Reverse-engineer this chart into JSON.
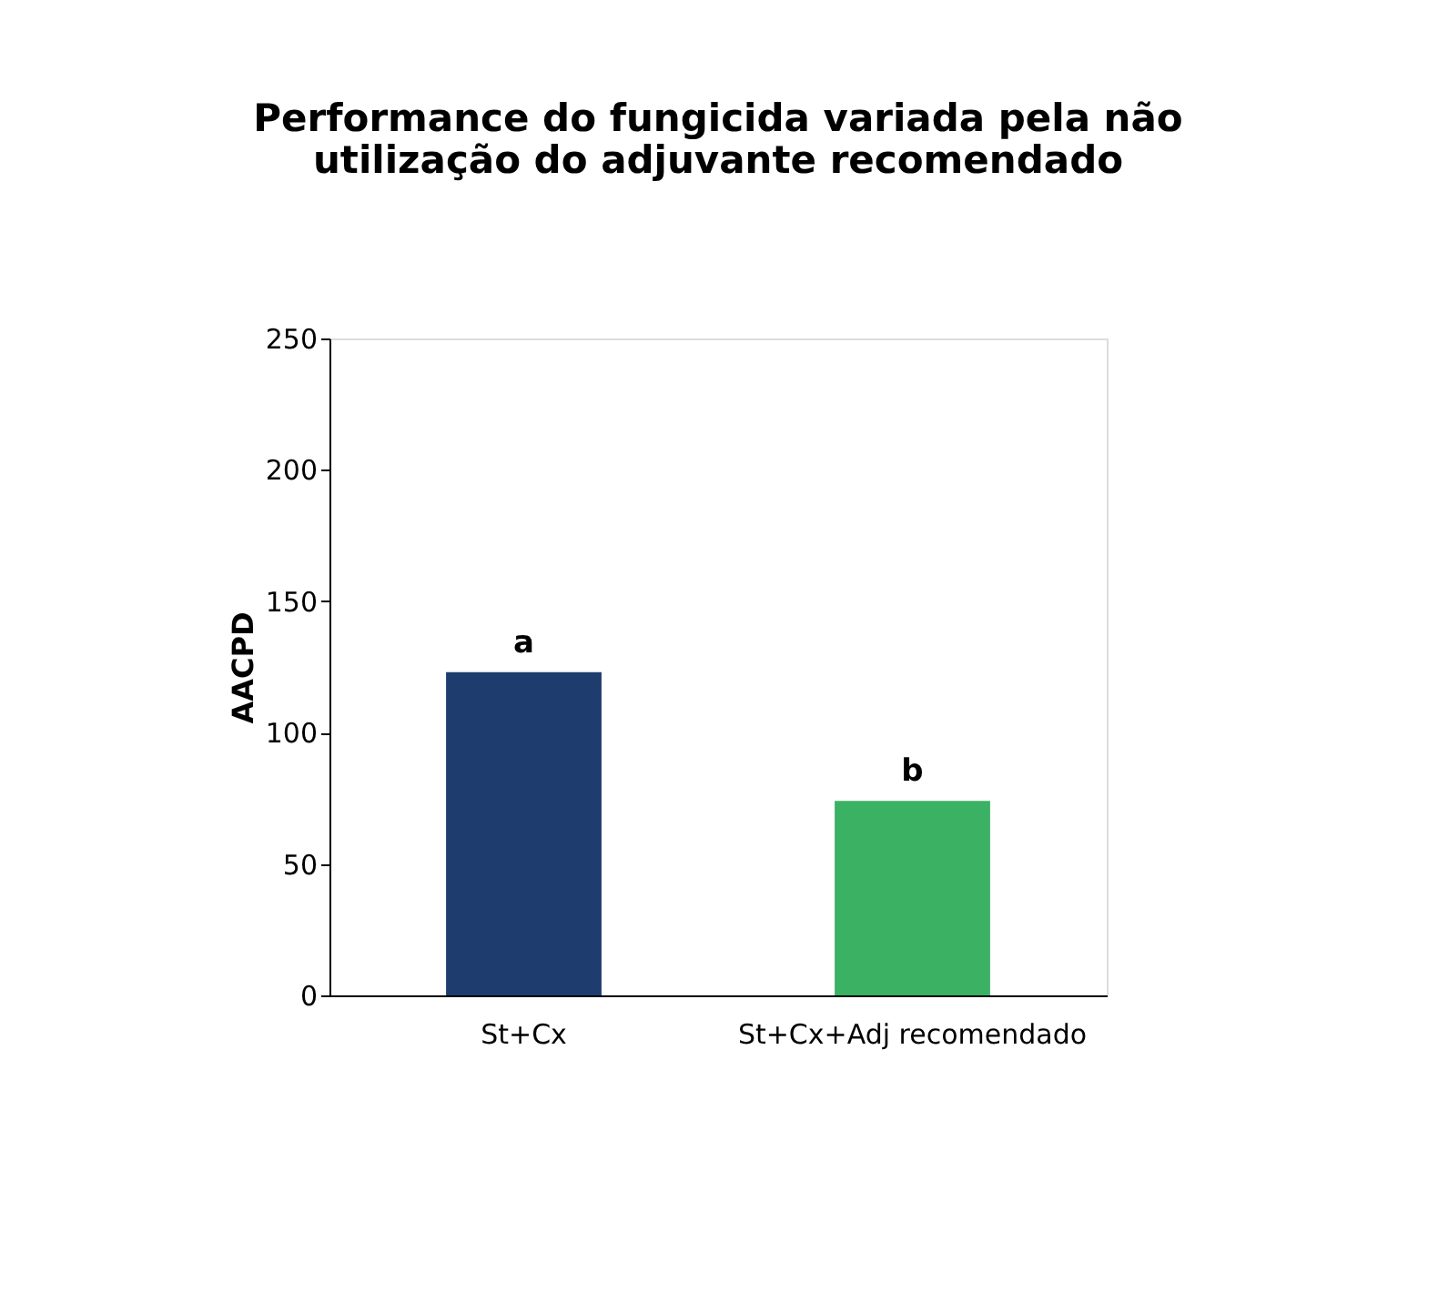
{
  "chart_data": {
    "type": "bar",
    "title": "Performance do fungicida variada pela não utilização do adjuvante recomendado",
    "ylabel": "AACPD",
    "categories": [
      "St+Cx",
      "St+Cx+Adj recomendado"
    ],
    "values": [
      123,
      74
    ],
    "colors": [
      "#1e3d6e",
      "#3bb163"
    ],
    "ylim": [
      0,
      250
    ],
    "yticks": [
      0,
      50,
      100,
      150,
      200,
      250
    ],
    "grid": false,
    "annotations": [
      {
        "text": "a",
        "x": "St+Cx",
        "y": 123
      },
      {
        "text": "b",
        "x": "St+Cx+Adj recomendado",
        "y": 74
      }
    ]
  }
}
